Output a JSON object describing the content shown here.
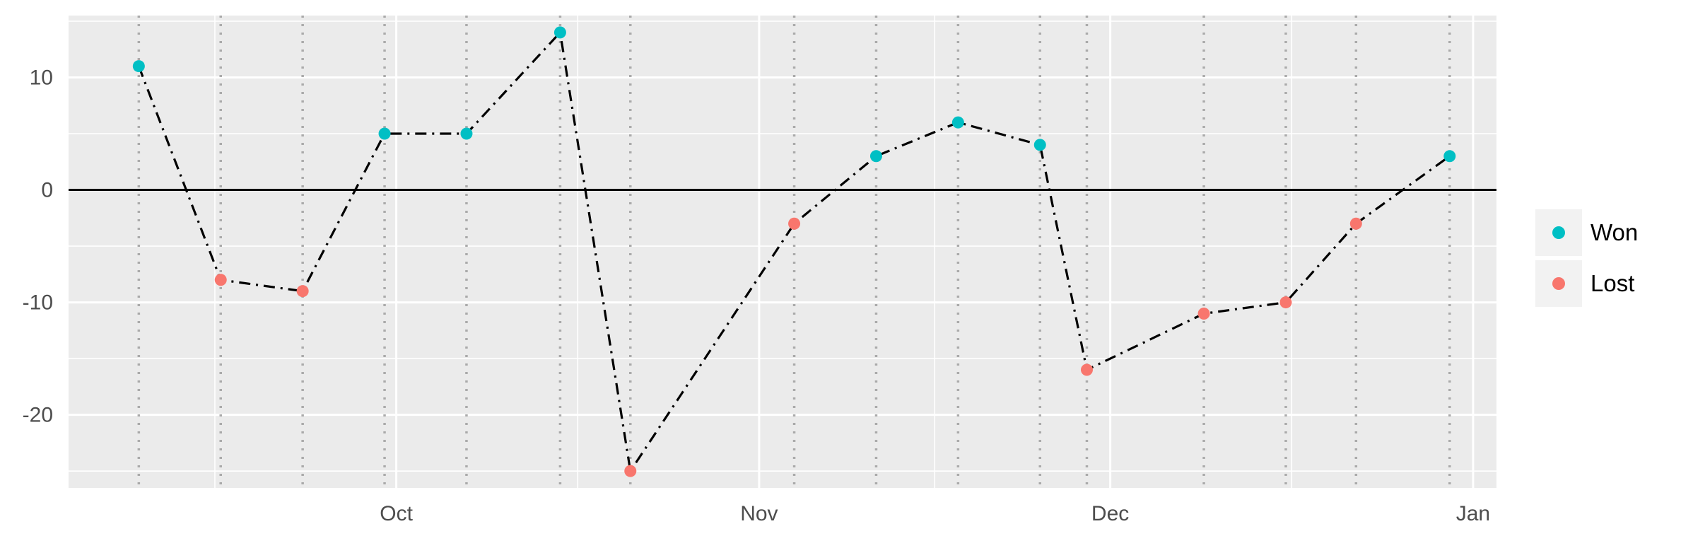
{
  "chart_data": {
    "type": "line",
    "title": "",
    "xlabel": "",
    "ylabel": "",
    "x_axis": {
      "type": "date",
      "range": [
        "2012-09-03",
        "2013-01-03"
      ],
      "ticks": [
        {
          "date": "2012-10-01",
          "label": "Oct"
        },
        {
          "date": "2012-11-01",
          "label": "Nov"
        },
        {
          "date": "2012-12-01",
          "label": "Dec"
        },
        {
          "date": "2013-01-01",
          "label": "Jan"
        }
      ]
    },
    "y_axis": {
      "range": [
        -26.5,
        15.5
      ],
      "ticks": [
        10,
        0,
        -10,
        -20
      ]
    },
    "reference_line_y": 0,
    "grid": true,
    "line_style": "dash-dot",
    "series": [
      {
        "values": [
          {
            "x": "2012-09-09",
            "y": 11,
            "result": "Won"
          },
          {
            "x": "2012-09-16",
            "y": -8,
            "result": "Lost"
          },
          {
            "x": "2012-09-23",
            "y": -9,
            "result": "Lost"
          },
          {
            "x": "2012-09-30",
            "y": 5,
            "result": "Won"
          },
          {
            "x": "2012-10-07",
            "y": 5,
            "result": "Won"
          },
          {
            "x": "2012-10-15",
            "y": 14,
            "result": "Won"
          },
          {
            "x": "2012-10-21",
            "y": -25,
            "result": "Lost"
          },
          {
            "x": "2012-11-04",
            "y": -3,
            "result": "Lost"
          },
          {
            "x": "2012-11-11",
            "y": 3,
            "result": "Won"
          },
          {
            "x": "2012-11-18",
            "y": 6,
            "result": "Won"
          },
          {
            "x": "2012-11-25",
            "y": 4,
            "result": "Won"
          },
          {
            "x": "2012-11-29",
            "y": -16,
            "result": "Lost"
          },
          {
            "x": "2012-12-09",
            "y": -11,
            "result": "Lost"
          },
          {
            "x": "2012-12-16",
            "y": -10,
            "result": "Lost"
          },
          {
            "x": "2012-12-22",
            "y": -3,
            "result": "Lost"
          },
          {
            "x": "2012-12-30",
            "y": 3,
            "result": "Won"
          }
        ]
      }
    ],
    "legend": {
      "placement": "right",
      "entries": [
        {
          "label": "Won",
          "color": "#00BFC4"
        },
        {
          "label": "Lost",
          "color": "#F8766D"
        }
      ]
    },
    "colors": {
      "panel_background": "#EBEBEB",
      "grid": "#FFFFFF",
      "game_marker_line": "#AAAAAA",
      "line": "#000000",
      "won": "#00BFC4",
      "lost": "#F8766D"
    }
  }
}
